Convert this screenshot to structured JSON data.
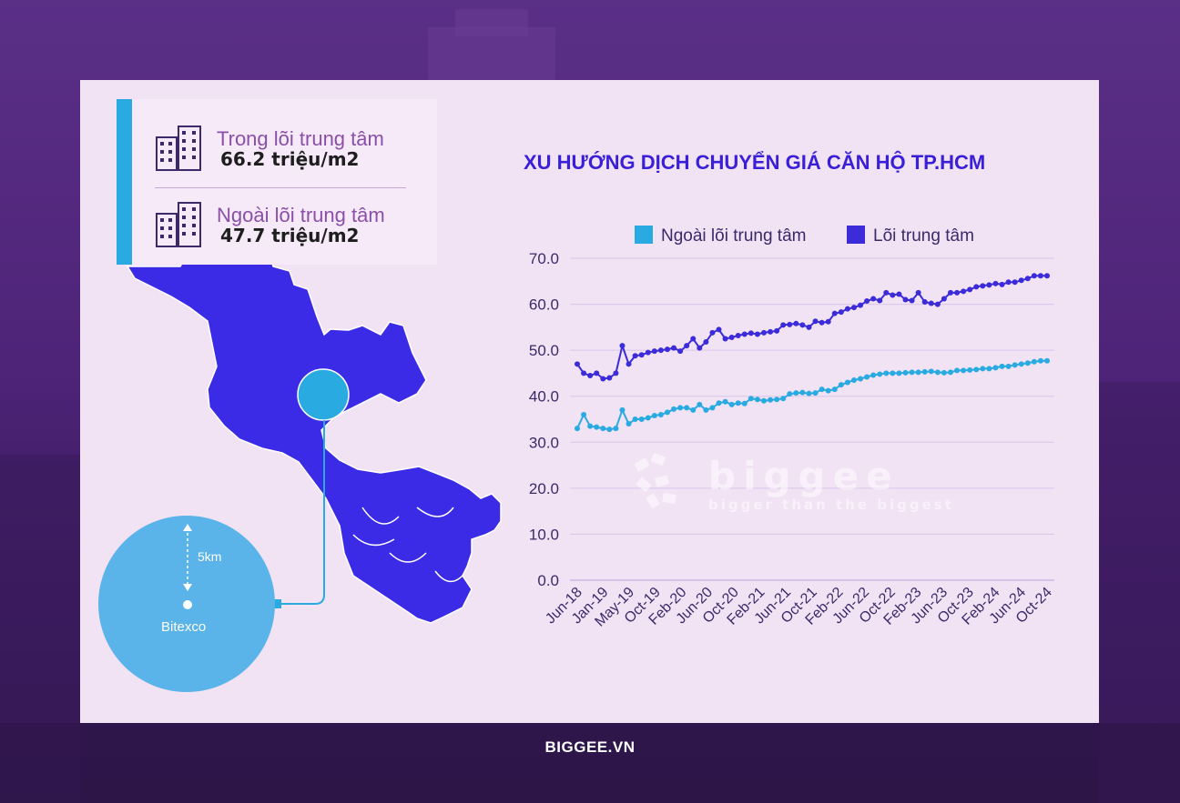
{
  "brand": {
    "footer": "BIGGEE.VN",
    "watermark_name": "biggee",
    "watermark_tagline": "bigger than the biggest"
  },
  "stats": [
    {
      "label": "Trong lõi trung tâm",
      "value": "66.2 triệu/m2",
      "icon": "buildings-icon"
    },
    {
      "label": "Ngoài lõi trung tâm",
      "value": "47.7 triệu/m2",
      "icon": "buildings-icon"
    }
  ],
  "map": {
    "scale_label": "5km",
    "center_label": "Bitexco",
    "core_color": "#29abe2",
    "outer_color": "#3b2be6"
  },
  "chart_data": {
    "type": "line",
    "title": "XU HƯỚNG DỊCH CHUYỂN GIÁ CĂN HỘ TP.HCM",
    "xlabel": "",
    "ylabel": "",
    "ylim": [
      0,
      70
    ],
    "yticks": [
      "0.0",
      "10.0",
      "20.0",
      "30.0",
      "40.0",
      "50.0",
      "60.0",
      "70.0"
    ],
    "xtick_labels": [
      "Jun-18",
      "Jan-19",
      "May-19",
      "Oct-19",
      "Feb-20",
      "Jun-20",
      "Oct-20",
      "Feb-21",
      "Jun-21",
      "Oct-21",
      "Feb-22",
      "Jun-22",
      "Oct-22",
      "Feb-23",
      "Jun-23",
      "Oct-23",
      "Feb-24",
      "Jun-24",
      "Oct-24"
    ],
    "legend_position": "top",
    "series": [
      {
        "name": "Ngoài lõi trung tâm",
        "color": "#29abe2",
        "values": [
          33.0,
          36.0,
          33.5,
          33.3,
          33.0,
          32.8,
          33.0,
          37.0,
          34.0,
          35.0,
          35.0,
          35.3,
          35.8,
          36.0,
          36.5,
          37.2,
          37.5,
          37.5,
          37.0,
          38.2,
          37.0,
          37.5,
          38.5,
          38.8,
          38.2,
          38.5,
          38.4,
          39.5,
          39.3,
          39.0,
          39.2,
          39.3,
          39.5,
          40.5,
          40.7,
          40.8,
          40.6,
          40.7,
          41.5,
          41.2,
          41.5,
          42.5,
          43.0,
          43.5,
          43.8,
          44.2,
          44.6,
          44.8,
          45.0,
          45.0,
          45.0,
          45.1,
          45.2,
          45.2,
          45.3,
          45.4,
          45.2,
          45.1,
          45.2,
          45.6,
          45.6,
          45.7,
          45.8,
          46.0,
          46.0,
          46.2,
          46.5,
          46.5,
          46.8,
          47.0,
          47.2,
          47.5,
          47.7,
          47.7
        ]
      },
      {
        "name": "Lõi trung tâm",
        "color": "#3b2bd9",
        "values": [
          47.0,
          45.0,
          44.5,
          45.0,
          43.8,
          44.0,
          45.0,
          51.0,
          47.0,
          48.8,
          49.0,
          49.5,
          49.8,
          50.0,
          50.2,
          50.5,
          49.8,
          51.0,
          52.5,
          50.5,
          51.8,
          53.8,
          54.5,
          52.5,
          52.8,
          53.2,
          53.5,
          53.7,
          53.5,
          53.8,
          54.0,
          54.2,
          55.5,
          55.6,
          55.8,
          55.5,
          55.0,
          56.3,
          56.0,
          56.2,
          58.0,
          58.3,
          59.0,
          59.3,
          59.8,
          60.7,
          61.2,
          60.8,
          62.5,
          62.0,
          62.2,
          61.0,
          60.8,
          62.5,
          60.5,
          60.2,
          60.0,
          61.2,
          62.5,
          62.5,
          62.8,
          63.2,
          63.8,
          64.0,
          64.2,
          64.5,
          64.3,
          64.8,
          64.8,
          65.2,
          65.6,
          66.2,
          66.2,
          66.2
        ]
      }
    ]
  }
}
